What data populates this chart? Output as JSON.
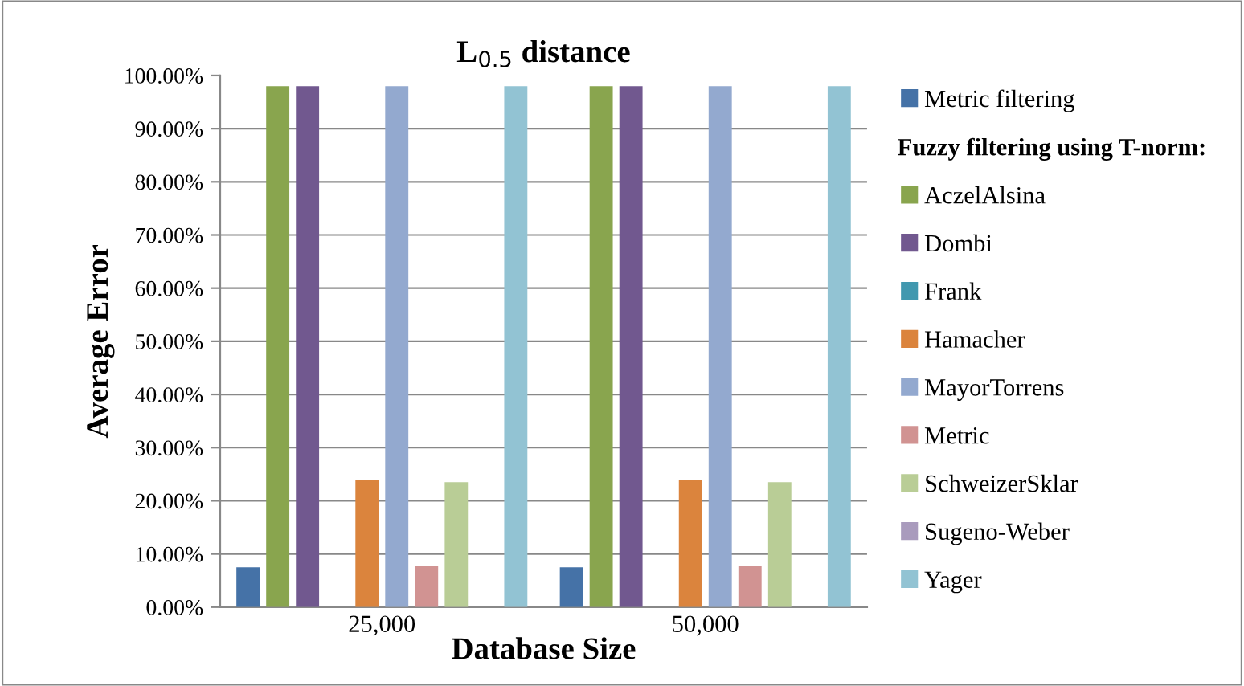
{
  "chart_data": {
    "type": "bar",
    "title": "L$_{0.5}$ distance",
    "xlabel": "Database Size",
    "ylabel": "Average Error",
    "legend_title": "Fuzzy filtering using T-norm:",
    "categories": [
      "25,000",
      "50,000"
    ],
    "series": [
      {
        "name": "Metric filtering",
        "color": "#4572a7",
        "values": [
          7.5,
          7.5
        ]
      },
      {
        "name": "AczelAlsina",
        "color": "#89a54e",
        "values": [
          98,
          98
        ]
      },
      {
        "name": "Dombi",
        "color": "#71588f",
        "values": [
          98,
          98
        ]
      },
      {
        "name": "Frank",
        "color": "#4198af",
        "values": [
          0,
          0
        ]
      },
      {
        "name": "Hamacher",
        "color": "#db843d",
        "values": [
          24,
          24
        ]
      },
      {
        "name": "MayorTorrens",
        "color": "#93a9cf",
        "values": [
          98,
          98
        ]
      },
      {
        "name": "Metric",
        "color": "#d19392",
        "values": [
          7.8,
          7.8
        ]
      },
      {
        "name": "SchweizerSklar",
        "color": "#b9cd96",
        "values": [
          23.5,
          23.5
        ]
      },
      {
        "name": "Sugeno-Weber",
        "color": "#a99bbd",
        "values": [
          0,
          0
        ]
      },
      {
        "name": "Yager",
        "color": "#92c3d3",
        "values": [
          98,
          98
        ]
      }
    ],
    "ylim": [
      0,
      100
    ],
    "yticks": [
      {
        "value": 0,
        "label": "0.00%"
      },
      {
        "value": 10,
        "label": "10.00%"
      },
      {
        "value": 20,
        "label": "20.00%"
      },
      {
        "value": 30,
        "label": "30.00%"
      },
      {
        "value": 40,
        "label": "40.00%"
      },
      {
        "value": 50,
        "label": "50.00%"
      },
      {
        "value": 60,
        "label": "60.00%"
      },
      {
        "value": 70,
        "label": "70.00%"
      },
      {
        "value": 80,
        "label": "80.00%"
      },
      {
        "value": 90,
        "label": "90.00%"
      },
      {
        "value": 100,
        "label": "100.00%"
      }
    ],
    "grid": "y",
    "legend": "right"
  }
}
